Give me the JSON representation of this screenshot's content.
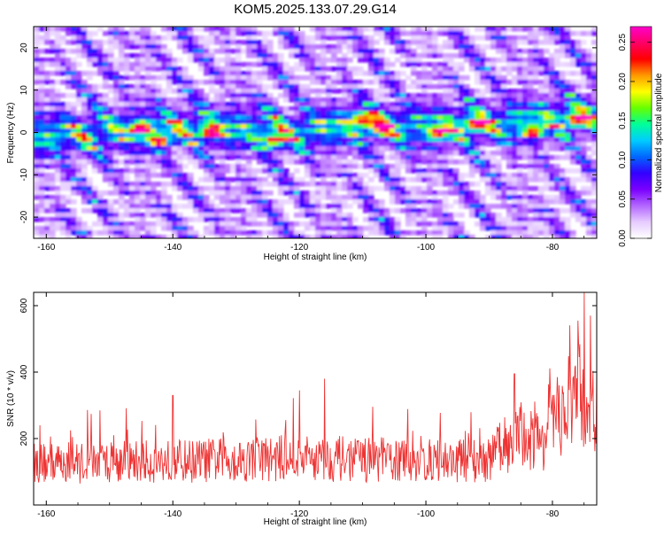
{
  "title": "KOM5.2025.133.07.29.G14",
  "chart_data": [
    {
      "type": "heatmap",
      "name": "spectrogram",
      "xlabel": "Height of straight line (km)",
      "ylabel": "Frequency (Hz)",
      "xlim": [
        -162,
        -73
      ],
      "ylim": [
        -25,
        25
      ],
      "xticks": [
        -160,
        -140,
        -120,
        -100,
        -80
      ],
      "yticks": [
        -20,
        -10,
        0,
        10,
        20
      ],
      "colorbar": {
        "label": "Normalized spectral amplitude",
        "range": [
          0,
          0.27
        ],
        "ticks": [
          "0.00",
          "0.05",
          "0.10",
          "0.15",
          "0.20",
          "0.25"
        ],
        "colors": [
          "#ffffff",
          "#e6ccff",
          "#b366ff",
          "#7a00ff",
          "#3300ff",
          "#0066ff",
          "#00ccff",
          "#00ff99",
          "#66ff00",
          "#ffff00",
          "#ff9900",
          "#ff0000",
          "#ff0066",
          "#ff00cc"
        ]
      },
      "band_center_points": [
        [
          -162,
          -1
        ],
        [
          -150,
          0
        ],
        [
          -140,
          1
        ],
        [
          -130,
          1
        ],
        [
          -120,
          0
        ],
        [
          -110,
          2
        ],
        [
          -100,
          1
        ],
        [
          -90,
          2
        ],
        [
          -80,
          3
        ],
        [
          -73,
          4
        ]
      ],
      "hotspots": [
        [
          -145,
          1
        ],
        [
          -142,
          -2
        ],
        [
          -134,
          0
        ],
        [
          -124,
          -2
        ],
        [
          -110,
          3
        ],
        [
          -107,
          1
        ],
        [
          -98,
          0
        ],
        [
          -92,
          2
        ],
        [
          -83,
          0
        ],
        [
          -76,
          3
        ]
      ]
    },
    {
      "type": "line",
      "name": "snr",
      "xlabel": "Height of straight line (km)",
      "ylabel": "SNR (10 * v/v)",
      "xlim": [
        -162,
        -73
      ],
      "ylim": [
        0,
        640
      ],
      "xticks": [
        -160,
        -140,
        -120,
        -100,
        -80
      ],
      "yticks": [
        200,
        400,
        600
      ],
      "color": "#ee3333",
      "trend": [
        [
          -162,
          120
        ],
        [
          -140,
          125
        ],
        [
          -120,
          135
        ],
        [
          -100,
          125
        ],
        [
          -90,
          130
        ],
        [
          -86,
          200
        ],
        [
          -82,
          180
        ],
        [
          -79,
          250
        ],
        [
          -76,
          320
        ],
        [
          -73,
          260
        ]
      ],
      "spikes": [
        [
          -161,
          240
        ],
        [
          -140,
          330
        ],
        [
          -120,
          345
        ],
        [
          -116,
          380
        ],
        [
          -86,
          395
        ],
        [
          -80,
          310
        ],
        [
          -76,
          555
        ],
        [
          -75,
          640
        ],
        [
          -74,
          570
        ]
      ]
    }
  ]
}
